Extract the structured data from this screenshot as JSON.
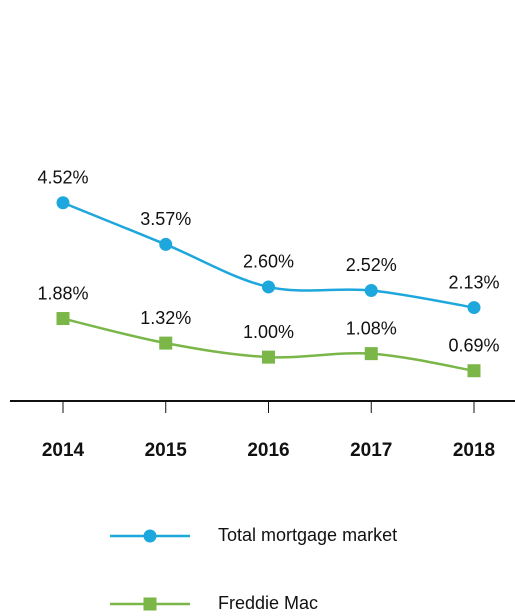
{
  "chart_data": {
    "type": "line",
    "categories": [
      "2014",
      "2015",
      "2016",
      "2017",
      "2018"
    ],
    "series": [
      {
        "name": "Total mortgage market",
        "color": "#1ea7dc",
        "marker": "circle",
        "values": [
          4.52,
          3.57,
          2.6,
          2.52,
          2.13
        ],
        "value_labels": [
          "4.52%",
          "3.57%",
          "2.60%",
          "2.52%",
          "2.13%"
        ]
      },
      {
        "name": "Freddie Mac",
        "color": "#7ab648",
        "marker": "square",
        "values": [
          1.88,
          1.32,
          1.0,
          1.08,
          0.69
        ],
        "value_labels": [
          "1.88%",
          "1.32%",
          "1.00%",
          "1.08%",
          "0.69%"
        ]
      }
    ],
    "legend": "bottom"
  }
}
